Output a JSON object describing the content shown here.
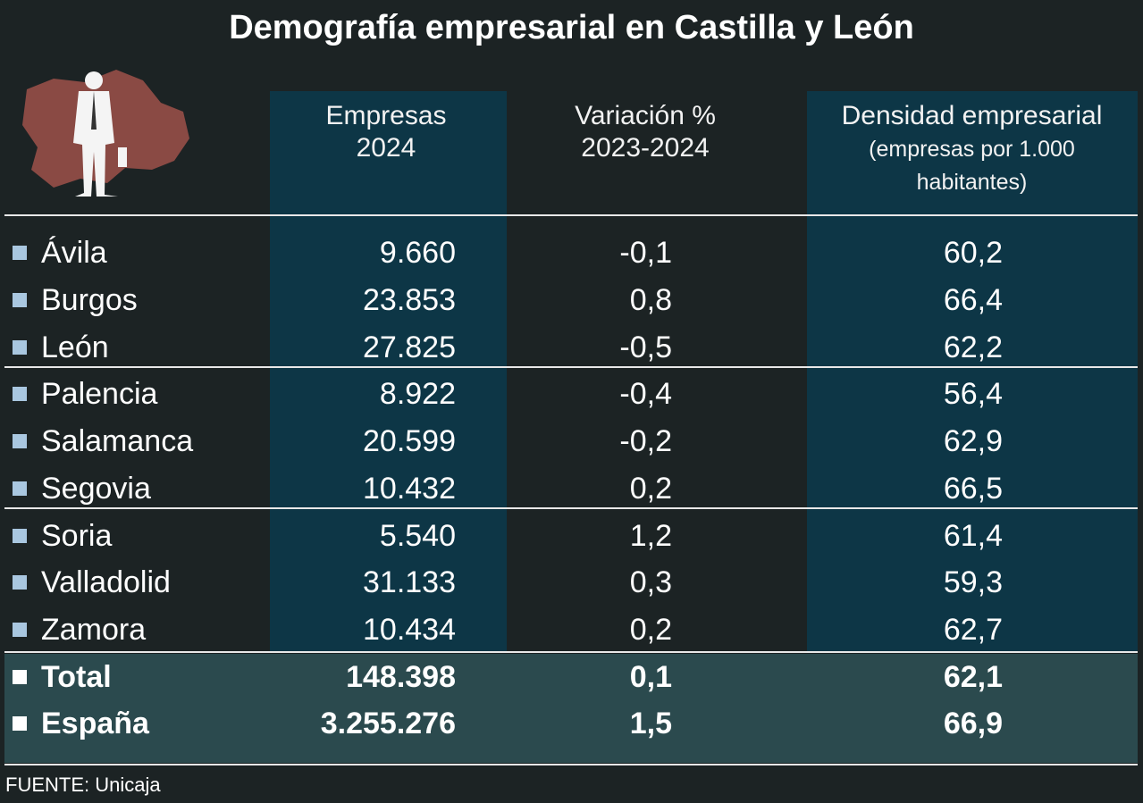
{
  "title": "Demografía empresarial en Castilla y León",
  "table": {
    "header": [
      "Empresas 2024",
      "Variación % 2023-2024",
      {
        "main": "Densidad empresarial",
        "note": "(empresas por 1.000 habitantes)"
      }
    ],
    "rows": [
      [
        "Ávila",
        "9.660",
        "-0,1",
        "60,2"
      ],
      [
        "Burgos",
        "23.853",
        "0,8",
        "66,4"
      ],
      [
        "León",
        "27.825",
        "-0,5",
        "62,2"
      ],
      [
        "Palencia",
        "8.922",
        "-0,4",
        "56,4"
      ],
      [
        "Salamanca",
        "20.599",
        "-0,2",
        "62,9"
      ],
      [
        "Segovia",
        "10.432",
        "0,2",
        "66,5"
      ],
      [
        "Soria",
        "5.540",
        "1,2",
        "61,4"
      ],
      [
        "Valladolid",
        "31.133",
        "0,3",
        "59,3"
      ],
      [
        "Zamora",
        "10.434",
        "0,2",
        "62,7"
      ]
    ],
    "totals": [
      [
        "Total",
        "148.398",
        "0,1",
        "62,1"
      ],
      [
        "España",
        "3.255.276",
        "1,5",
        "66,9"
      ]
    ]
  },
  "source": "FUENTE: Unicaja"
}
